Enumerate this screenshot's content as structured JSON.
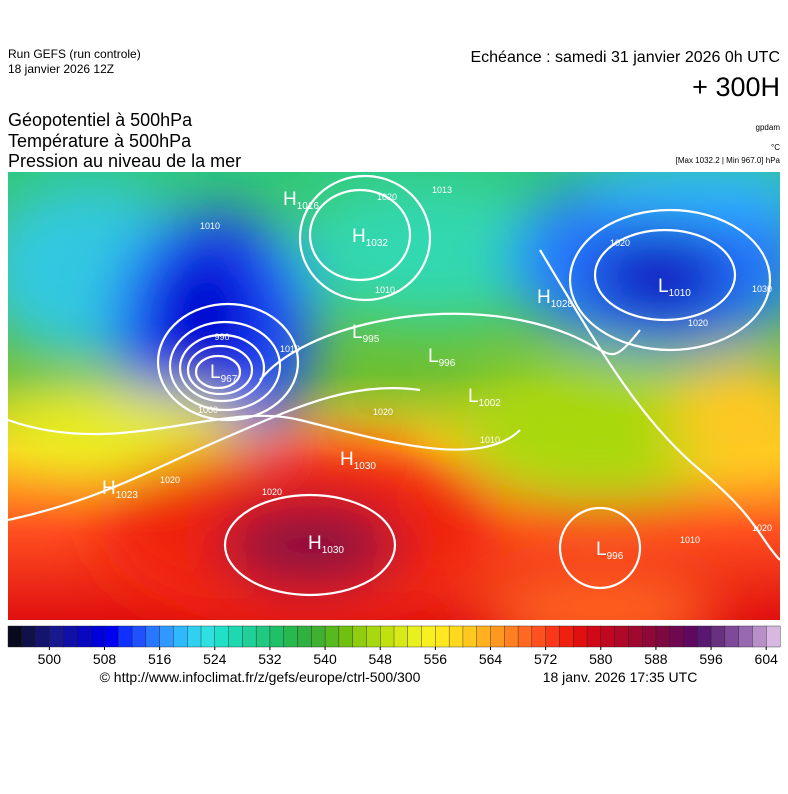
{
  "header": {
    "run": "Run GEFS (run controle)",
    "run_date": "18 janvier 2026 12Z",
    "valid": "Echéance : samedi 31 janvier 2026 0h UTC",
    "lead": "+ 300H"
  },
  "titles": [
    "Géopotentiel à 500hPa",
    "Température à 500hPa",
    "Pression au niveau de la mer"
  ],
  "units": {
    "geopotential": "gpdam",
    "temperature": "°C",
    "pressure": "[Max 1032.2 | Min 967.0] hPa"
  },
  "centers": [
    {
      "kind": "H",
      "value": "1016"
    },
    {
      "kind": "H",
      "value": "1032"
    },
    {
      "kind": "L",
      "value": "1010"
    },
    {
      "kind": "H",
      "value": "1028"
    },
    {
      "kind": "L",
      "value": "995"
    },
    {
      "kind": "L",
      "value": "967"
    },
    {
      "kind": "L",
      "value": "996"
    },
    {
      "kind": "L",
      "value": "1002"
    },
    {
      "kind": "H",
      "value": "1030"
    },
    {
      "kind": "H",
      "value": "1023"
    },
    {
      "kind": "H",
      "value": "1030"
    },
    {
      "kind": "L",
      "value": "996"
    }
  ],
  "isobar_labels": [
    "1020",
    "1013",
    "1010",
    "1020",
    "1030",
    "1010",
    "1020",
    "990",
    "1010",
    "1000",
    "1020",
    "1010",
    "1020",
    "1020",
    "1010",
    "1020"
  ],
  "colorbar": {
    "lim": [
      494,
      606
    ],
    "colors": [
      "#0a0a1e",
      "#10104a",
      "#14146e",
      "#181890",
      "#1010a8",
      "#0808c0",
      "#0000d8",
      "#0000f0",
      "#1030ff",
      "#2050ff",
      "#2878ff",
      "#3098ff",
      "#30b8ff",
      "#30d0f0",
      "#30e0e0",
      "#20e0c8",
      "#20d8b0",
      "#20d098",
      "#20c880",
      "#20c068",
      "#28b850",
      "#30b040",
      "#40b030",
      "#58b820",
      "#70c010",
      "#90cc10",
      "#a8d810",
      "#c0e010",
      "#d8e818",
      "#e8f020",
      "#f8f020",
      "#ffe820",
      "#ffd820",
      "#ffc820",
      "#ffb020",
      "#ff9820",
      "#ff8020",
      "#ff6820",
      "#ff5020",
      "#f83818",
      "#f02010",
      "#e01010",
      "#d00818",
      "#c00820",
      "#b00828",
      "#a00830",
      "#900838",
      "#800840",
      "#700850",
      "#600860",
      "#581870",
      "#683080",
      "#804898",
      "#9868b0",
      "#b890c8",
      "#d8b8e0"
    ],
    "ticks": [
      500,
      508,
      516,
      524,
      532,
      540,
      548,
      556,
      564,
      572,
      580,
      588,
      596,
      604
    ]
  },
  "footer": {
    "url": "© http://www.infoclimat.fr/z/gefs/europe/ctrl-500/300",
    "timestamp": "18 janv. 2026 17:35 UTC"
  }
}
